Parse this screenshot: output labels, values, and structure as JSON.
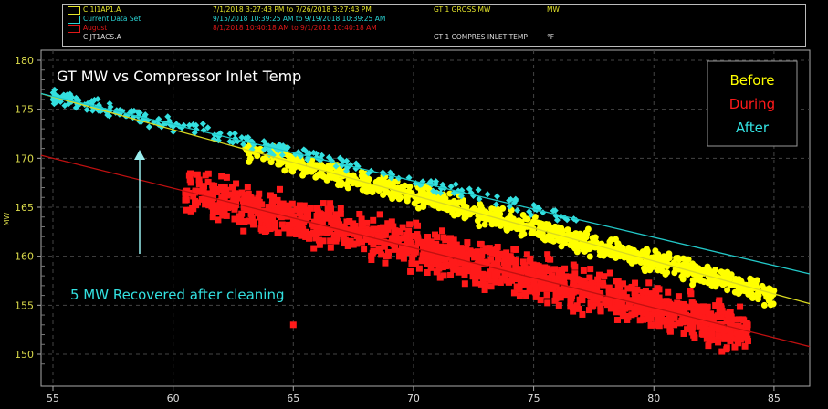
{
  "legend_header": [
    {
      "name": "C 1I1AP1.A",
      "range": "7/1/2018 3:27:43 PM  to 7/26/2018 3:27:43 PM",
      "tag": "GT 1 GROSS MW",
      "unit": "MW",
      "color": "#e6e62a"
    },
    {
      "name": "Current Data Set",
      "range": "9/15/2018 10:39:25 AM  to 9/19/2018 10:39:25 AM",
      "tag": "",
      "unit": "",
      "color": "#2ad4d4"
    },
    {
      "name": "August",
      "range": "8/1/2018 10:40:18 AM  to 9/1/2018 10:40:18 AM",
      "tag": "",
      "unit": "",
      "color": "#e01818"
    },
    {
      "name": "C JT1ACS.A",
      "range": "",
      "tag": "GT 1 COMPRES INLET TEMP",
      "unit": "°F",
      "color": "#dddddd"
    }
  ],
  "chart_data": {
    "type": "scatter",
    "title": "GT MW vs Compressor Inlet Temp",
    "xlabel": "",
    "ylabel": "MW",
    "xlim": [
      54.5,
      86.5
    ],
    "ylim": [
      148,
      181
    ],
    "xticks": [
      55,
      60,
      65,
      70,
      75,
      80,
      85
    ],
    "yticks": [
      150,
      155,
      160,
      165,
      170,
      175,
      180
    ],
    "grid": true,
    "legend": {
      "placement": "top-right",
      "entries": [
        {
          "label": "Before",
          "color": "#ffff00"
        },
        {
          "label": "During",
          "color": "#ff1a1a"
        },
        {
          "label": "After",
          "color": "#33e0e0"
        }
      ]
    },
    "annotation": "5 MW Recovered after cleaning",
    "series": [
      {
        "name": "Before",
        "color": "#ffff00",
        "marker": "circle",
        "x_range": [
          63,
          85
        ],
        "fit": {
          "slope": -0.67,
          "intercept_at_54_5": 176.6
        },
        "spread": 1.6,
        "count": 900
      },
      {
        "name": "During",
        "color": "#ff1a1a",
        "marker": "square",
        "x_range": [
          60.5,
          84
        ],
        "fit": {
          "slope": -0.61,
          "intercept_at_54_5": 170.3
        },
        "spread": 3.0,
        "count": 1400,
        "outliers": [
          [
            65,
            153
          ]
        ]
      },
      {
        "name": "After",
        "color": "#33e0e0",
        "marker": "diamond",
        "x_range": [
          55,
          77
        ],
        "fit": {
          "slope": -0.575,
          "intercept_at_54_5": 176.6
        },
        "spread": 1.0,
        "count": 260
      }
    ]
  }
}
